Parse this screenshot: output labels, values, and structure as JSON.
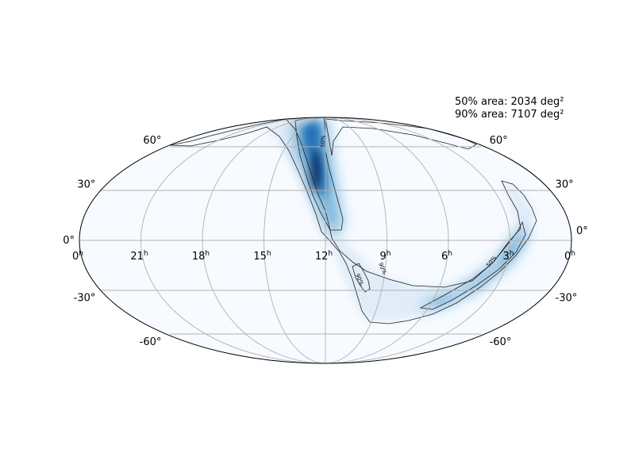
{
  "chart_data": {
    "type": "heatmap",
    "projection": "mollweide",
    "coordinate_system": "equatorial (RA in hours, Dec in degrees)",
    "colormap": "Blues",
    "grid": true,
    "annotations": [
      {
        "key": "area50",
        "text": "50% area: 2034 deg²"
      },
      {
        "key": "area90",
        "text": "90% area: 7107 deg²"
      }
    ],
    "ra_ticks": [
      {
        "ra": 24,
        "label": "0",
        "sup": "h"
      },
      {
        "ra": 21,
        "label": "21",
        "sup": "h"
      },
      {
        "ra": 18,
        "label": "18",
        "sup": "h"
      },
      {
        "ra": 15,
        "label": "15",
        "sup": "h"
      },
      {
        "ra": 12,
        "label": "12",
        "sup": "h"
      },
      {
        "ra": 9,
        "label": "9",
        "sup": "h"
      },
      {
        "ra": 6,
        "label": "6",
        "sup": "h"
      },
      {
        "ra": 3,
        "label": "3",
        "sup": "h"
      },
      {
        "ra": 0,
        "label": "0",
        "sup": "h"
      }
    ],
    "dec_ticks": [
      {
        "dec": 60,
        "label": "60°"
      },
      {
        "dec": 30,
        "label": "30°"
      },
      {
        "dec": 0,
        "label": "0°"
      },
      {
        "dec": -30,
        "label": "-30°"
      },
      {
        "dec": -60,
        "label": "-60°"
      }
    ],
    "contours": [
      {
        "level": "50%",
        "label": "50%"
      },
      {
        "level": "90%",
        "label": "90%"
      }
    ],
    "probability_peaks": [
      {
        "ra": 12.4,
        "dec": 45,
        "relative_density": 1.0
      },
      {
        "ra": 12.6,
        "dec": 60,
        "relative_density": 0.85
      },
      {
        "ra": 11.7,
        "dec": 20,
        "relative_density": 0.45
      },
      {
        "ra": 2.6,
        "dec": -20,
        "relative_density": 0.45
      },
      {
        "ra": 4.2,
        "dec": -33,
        "relative_density": 0.45
      }
    ]
  }
}
